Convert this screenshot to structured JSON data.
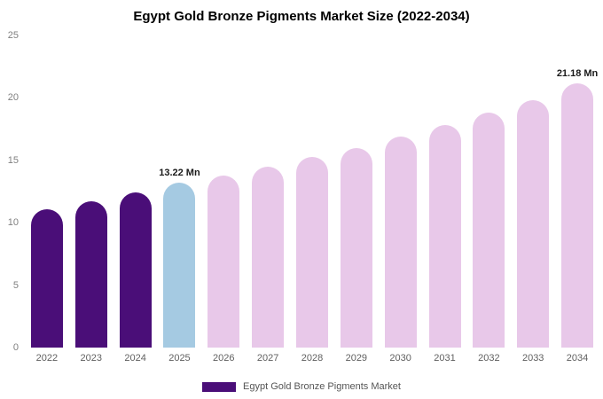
{
  "title": "Egypt Gold Bronze Pigments Market Size (2022-2034)",
  "legend": {
    "label": "Egypt Gold Bronze Pigments Market",
    "color": "#4a0e78"
  },
  "chart_data": {
    "type": "bar",
    "title": "Egypt Gold Bronze Pigments Market Size (2022-2034)",
    "categories": [
      "2022",
      "2023",
      "2024",
      "2025",
      "2026",
      "2027",
      "2028",
      "2029",
      "2030",
      "2031",
      "2032",
      "2033",
      "2034"
    ],
    "values": [
      11.1,
      11.7,
      12.4,
      13.22,
      13.75,
      14.5,
      15.25,
      16.0,
      16.9,
      17.8,
      18.8,
      19.8,
      21.18
    ],
    "unit": "Mn",
    "bar_roles": [
      "past",
      "past",
      "past",
      "highlight",
      "forecast",
      "forecast",
      "forecast",
      "forecast",
      "forecast",
      "forecast",
      "forecast",
      "forecast",
      "forecast"
    ],
    "role_colors": {
      "past": "#4a0e78",
      "highlight": "#a5cae2",
      "forecast": "#e8c8e9"
    },
    "ylim": [
      0,
      25
    ],
    "yticks": [
      0,
      5,
      10,
      15,
      20,
      25
    ],
    "data_labels": {
      "2025": "13.22 Mn",
      "2034": "21.18 Mn"
    },
    "grid": false,
    "legend_position": "bottom"
  }
}
